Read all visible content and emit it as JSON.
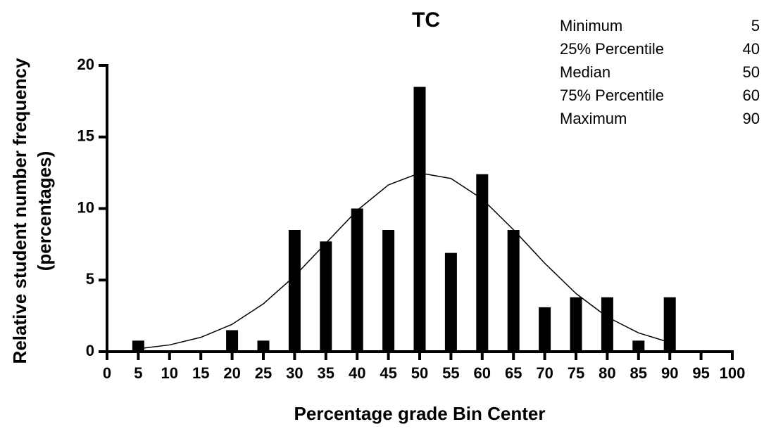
{
  "chart_data": {
    "type": "bar",
    "title": "TC",
    "xlabel": "Percentage grade Bin Center",
    "ylabel": [
      "Relative student number frequency",
      "(percentages)"
    ],
    "xlim": [
      0,
      100
    ],
    "xticks": [
      0,
      5,
      10,
      15,
      20,
      25,
      30,
      35,
      40,
      45,
      50,
      55,
      60,
      65,
      70,
      75,
      80,
      85,
      90,
      95,
      100
    ],
    "ylim": [
      0,
      20
    ],
    "yticks": [
      0,
      5,
      10,
      15,
      20
    ],
    "series": [
      {
        "type": "bar",
        "color": "#000000",
        "x": [
          5,
          10,
          15,
          20,
          25,
          30,
          35,
          40,
          45,
          50,
          55,
          60,
          65,
          70,
          75,
          80,
          85,
          90,
          95
        ],
        "values": [
          0.77,
          0,
          0,
          1.5,
          0.77,
          8.5,
          7.7,
          10.0,
          8.5,
          18.5,
          6.9,
          12.4,
          8.5,
          3.1,
          3.8,
          3.8,
          0.77,
          3.8,
          0
        ]
      },
      {
        "type": "line",
        "color": "#000000",
        "x": [
          5,
          10,
          15,
          20,
          25,
          30,
          35,
          40,
          45,
          50,
          55,
          60,
          65,
          70,
          75,
          80,
          85,
          90
        ],
        "values": [
          0.2,
          0.47,
          1.0,
          1.91,
          3.34,
          5.28,
          7.58,
          9.87,
          11.65,
          12.48,
          12.1,
          10.67,
          8.52,
          6.18,
          4.06,
          2.42,
          1.31,
          0.64
        ]
      }
    ],
    "stats": [
      {
        "label": "Minimum",
        "value": 5
      },
      {
        "label": "25% Percentile",
        "value": 40
      },
      {
        "label": "Median",
        "value": 50
      },
      {
        "label": "75% Percentile",
        "value": 60
      },
      {
        "label": "Maximum",
        "value": 90
      }
    ]
  }
}
